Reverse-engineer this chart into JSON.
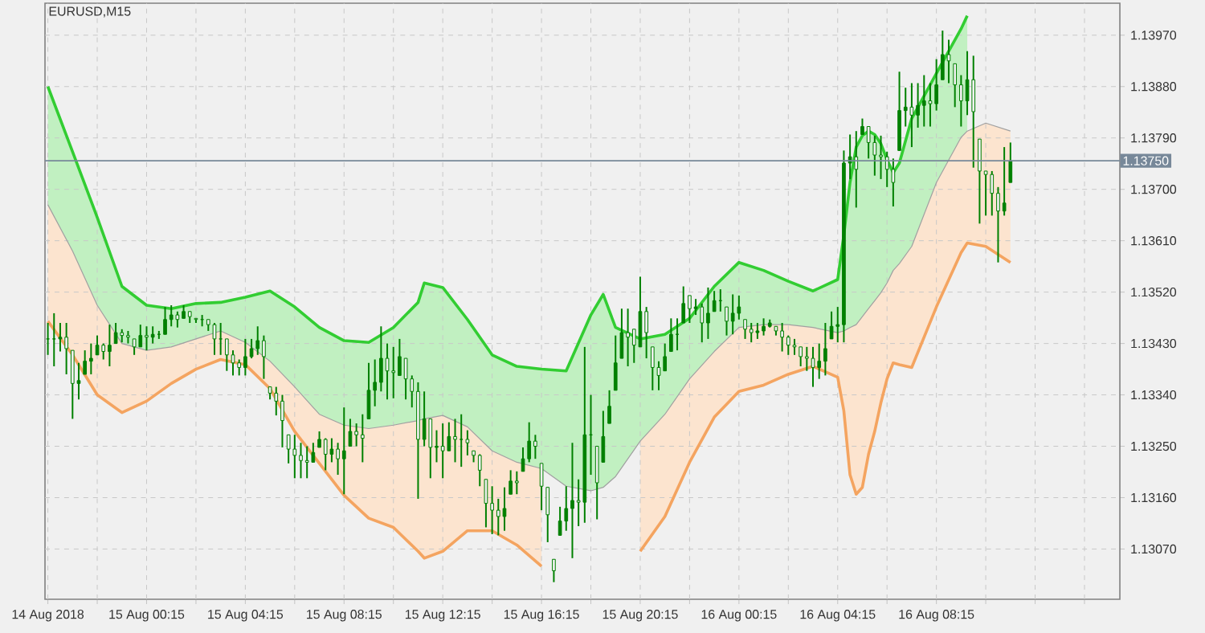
{
  "chart_data": {
    "type": "candlestick",
    "title": "EURUSD,M15",
    "color": "#008000",
    "x": [
      "2018-08-14T20:15",
      "2018-08-14T20:30",
      "2018-08-14T20:45",
      "2018-08-14T21:00",
      "2018-08-14T21:15",
      "2018-08-14T21:30",
      "2018-08-14T21:45",
      "2018-08-14T22:00",
      "2018-08-14T22:15",
      "2018-08-14T22:30",
      "2018-08-14T22:45",
      "2018-08-14T23:00",
      "2018-08-14T23:15",
      "2018-08-14T23:30",
      "2018-08-14T23:45",
      "2018-08-15T00:00",
      "2018-08-15T00:15",
      "2018-08-15T00:30",
      "2018-08-15T00:45",
      "2018-08-15T01:00",
      "2018-08-15T01:15",
      "2018-08-15T01:30",
      "2018-08-15T01:45",
      "2018-08-15T02:00",
      "2018-08-15T02:15",
      "2018-08-15T02:30",
      "2018-08-15T02:45",
      "2018-08-15T03:00",
      "2018-08-15T03:15",
      "2018-08-15T03:30",
      "2018-08-15T03:45",
      "2018-08-15T04:00",
      "2018-08-15T04:15",
      "2018-08-15T04:30",
      "2018-08-15T04:45",
      "2018-08-15T05:00",
      "2018-08-15T05:15",
      "2018-08-15T05:30",
      "2018-08-15T05:45",
      "2018-08-15T06:00",
      "2018-08-15T06:15",
      "2018-08-15T06:30",
      "2018-08-15T06:45",
      "2018-08-15T07:00",
      "2018-08-15T07:15",
      "2018-08-15T07:30",
      "2018-08-15T07:45",
      "2018-08-15T08:00",
      "2018-08-15T08:15",
      "2018-08-15T08:30",
      "2018-08-15T08:45",
      "2018-08-15T09:00",
      "2018-08-15T09:15",
      "2018-08-15T09:30",
      "2018-08-15T09:45",
      "2018-08-15T10:00",
      "2018-08-15T10:15",
      "2018-08-15T10:30",
      "2018-08-15T10:45",
      "2018-08-15T11:00",
      "2018-08-15T11:15",
      "2018-08-15T11:30",
      "2018-08-15T11:45",
      "2018-08-15T12:00",
      "2018-08-15T12:15",
      "2018-08-15T12:30",
      "2018-08-15T12:45",
      "2018-08-15T13:00",
      "2018-08-15T13:15",
      "2018-08-15T13:30",
      "2018-08-15T13:45",
      "2018-08-15T14:00",
      "2018-08-15T14:15",
      "2018-08-15T14:30",
      "2018-08-15T14:45",
      "2018-08-15T15:00",
      "2018-08-15T15:15",
      "2018-08-15T15:30",
      "2018-08-15T15:45",
      "2018-08-15T16:00",
      "2018-08-15T16:15",
      "2018-08-15T16:30",
      "2018-08-15T16:45",
      "2018-08-15T17:00",
      "2018-08-15T17:15",
      "2018-08-15T17:30",
      "2018-08-15T17:45",
      "2018-08-15T18:00",
      "2018-08-15T18:15",
      "2018-08-15T18:30",
      "2018-08-15T18:45",
      "2018-08-15T19:00",
      "2018-08-15T19:15",
      "2018-08-15T19:30",
      "2018-08-15T19:45",
      "2018-08-15T20:00",
      "2018-08-15T20:15",
      "2018-08-15T20:30",
      "2018-08-15T20:45",
      "2018-08-15T21:00",
      "2018-08-15T21:15",
      "2018-08-15T21:30",
      "2018-08-15T21:45",
      "2018-08-15T22:00",
      "2018-08-15T22:15",
      "2018-08-15T22:30",
      "2018-08-15T22:45",
      "2018-08-15T23:00",
      "2018-08-15T23:15",
      "2018-08-15T23:30",
      "2018-08-15T23:45",
      "2018-08-16T00:00",
      "2018-08-16T00:15",
      "2018-08-16T00:30",
      "2018-08-16T00:45",
      "2018-08-16T01:00",
      "2018-08-16T01:15",
      "2018-08-16T01:30",
      "2018-08-16T01:45",
      "2018-08-16T02:00",
      "2018-08-16T02:15",
      "2018-08-16T02:30",
      "2018-08-16T02:45",
      "2018-08-16T03:00",
      "2018-08-16T03:15",
      "2018-08-16T03:30",
      "2018-08-16T03:45",
      "2018-08-16T04:00",
      "2018-08-16T04:15",
      "2018-08-16T04:30",
      "2018-08-16T04:45",
      "2018-08-16T05:00",
      "2018-08-16T05:15",
      "2018-08-16T05:30",
      "2018-08-16T05:45",
      "2018-08-16T06:00",
      "2018-08-16T06:15",
      "2018-08-16T06:30",
      "2018-08-16T06:45",
      "2018-08-16T07:00",
      "2018-08-16T07:15",
      "2018-08-16T07:30",
      "2018-08-16T07:45",
      "2018-08-16T08:00",
      "2018-08-16T08:15",
      "2018-08-16T08:30",
      "2018-08-16T08:45",
      "2018-08-16T09:00",
      "2018-08-16T09:15",
      "2018-08-16T09:30",
      "2018-08-16T09:45",
      "2018-08-16T10:00",
      "2018-08-16T10:15",
      "2018-08-16T10:30",
      "2018-08-16T10:45",
      "2018-08-16T11:00",
      "2018-08-16T11:15"
    ],
    "ohlc": [
      [
        1.13438,
        1.13466,
        1.1341,
        1.13438
      ],
      [
        1.13438,
        1.13483,
        1.1339,
        1.13438
      ],
      [
        1.13438,
        1.13466,
        1.13416,
        1.13441
      ],
      [
        1.13441,
        1.13466,
        1.13376,
        1.13421
      ],
      [
        1.13418,
        1.13418,
        1.13298,
        1.1336
      ],
      [
        1.1336,
        1.13396,
        1.13332,
        1.13365
      ],
      [
        1.13376,
        1.13418,
        1.13376,
        1.13399
      ],
      [
        1.13399,
        1.1343,
        1.13376,
        1.13404
      ],
      [
        1.1341,
        1.13444,
        1.1341,
        1.13427
      ],
      [
        1.13427,
        1.1343,
        1.13402,
        1.13416
      ],
      [
        1.13416,
        1.13463,
        1.1339,
        1.13427
      ],
      [
        1.1343,
        1.13466,
        1.1343,
        1.13449
      ],
      [
        1.13449,
        1.13455,
        1.13432,
        1.13444
      ],
      [
        1.13444,
        1.13452,
        1.1343,
        1.13441
      ],
      [
        1.13438,
        1.13438,
        1.1341,
        1.13424
      ],
      [
        1.13424,
        1.13463,
        1.13424,
        1.13444
      ],
      [
        1.13444,
        1.1346,
        1.13418,
        1.13441
      ],
      [
        1.13441,
        1.1346,
        1.1343,
        1.13446
      ],
      [
        1.13446,
        1.13452,
        1.13438,
        1.13446
      ],
      [
        1.13446,
        1.13494,
        1.13446,
        1.13472
      ],
      [
        1.13472,
        1.13497,
        1.1346,
        1.1348
      ],
      [
        1.1348,
        1.13486,
        1.13458,
        1.13472
      ],
      [
        1.13474,
        1.13497,
        1.13474,
        1.13486
      ],
      [
        1.13486,
        1.13486,
        1.13466,
        1.13477
      ],
      [
        1.13474,
        1.13474,
        1.13466,
        1.13472
      ],
      [
        1.13472,
        1.1348,
        1.1346,
        1.13472
      ],
      [
        1.13472,
        1.13472,
        1.13452,
        1.13463
      ],
      [
        1.13463,
        1.13466,
        1.1341,
        1.13438
      ],
      [
        1.13438,
        1.13466,
        1.1341,
        1.13438
      ],
      [
        1.13438,
        1.13438,
        1.13382,
        1.1341
      ],
      [
        1.1341,
        1.13418,
        1.13374,
        1.13396
      ],
      [
        1.13396,
        1.13402,
        1.13374,
        1.13388
      ],
      [
        1.13388,
        1.13438,
        1.13374,
        1.13407
      ],
      [
        1.13407,
        1.13438,
        1.13404,
        1.13421
      ],
      [
        1.13421,
        1.1346,
        1.1341,
        1.13435
      ],
      [
        1.13435,
        1.13444,
        1.13368,
        1.13407
      ],
      [
        1.13354,
        1.13354,
        1.13332,
        1.13343
      ],
      [
        1.13343,
        1.13354,
        1.13304,
        1.13329
      ],
      [
        1.13329,
        1.1334,
        1.13248,
        1.13295
      ],
      [
        1.1327,
        1.1327,
        1.1322,
        1.13245
      ],
      [
        1.13245,
        1.1327,
        1.13194,
        1.13234
      ],
      [
        1.13234,
        1.13256,
        1.13194,
        1.13225
      ],
      [
        1.13225,
        1.1325,
        1.13194,
        1.13222
      ],
      [
        1.13222,
        1.13256,
        1.13222,
        1.13239
      ],
      [
        1.13248,
        1.13276,
        1.13248,
        1.13262
      ],
      [
        1.13262,
        1.13264,
        1.13208,
        1.13236
      ],
      [
        1.13236,
        1.13264,
        1.13222,
        1.13245
      ],
      [
        1.13245,
        1.13256,
        1.132,
        1.13228
      ],
      [
        1.13228,
        1.13318,
        1.13166,
        1.13242
      ],
      [
        1.1325,
        1.13298,
        1.1325,
        1.13276
      ],
      [
        1.13276,
        1.1329,
        1.1325,
        1.1327
      ],
      [
        1.1327,
        1.13306,
        1.13222,
        1.13264
      ],
      [
        1.13298,
        1.13396,
        1.13298,
        1.13348
      ],
      [
        1.13348,
        1.13402,
        1.1332,
        1.13362
      ],
      [
        1.13362,
        1.1346,
        1.13346,
        1.13404
      ],
      [
        1.13404,
        1.1343,
        1.13332,
        1.13382
      ],
      [
        1.13382,
        1.13424,
        1.13334,
        1.13379
      ],
      [
        1.13374,
        1.13438,
        1.13374,
        1.13407
      ],
      [
        1.13404,
        1.13404,
        1.13332,
        1.13368
      ],
      [
        1.13368,
        1.13374,
        1.13318,
        1.13346
      ],
      [
        1.13346,
        1.13362,
        1.13158,
        1.13262
      ],
      [
        1.13262,
        1.13346,
        1.1325,
        1.13298
      ],
      [
        1.13298,
        1.13298,
        1.13194,
        1.13248
      ],
      [
        1.13248,
        1.13278,
        1.13222,
        1.1325
      ],
      [
        1.1325,
        1.1329,
        1.13194,
        1.13242
      ],
      [
        1.13242,
        1.13292,
        1.13242,
        1.13267
      ],
      [
        1.13267,
        1.13298,
        1.13222,
        1.13262
      ],
      [
        1.13262,
        1.13306,
        1.13214,
        1.13262
      ],
      [
        1.13262,
        1.13278,
        1.13234,
        1.13256
      ],
      [
        1.13242,
        1.13242,
        1.13222,
        1.13234
      ],
      [
        1.13234,
        1.13236,
        1.1318,
        1.13208
      ],
      [
        1.13192,
        1.13192,
        1.13108,
        1.1315
      ],
      [
        1.1315,
        1.1318,
        1.13096,
        1.13138
      ],
      [
        1.13138,
        1.13158,
        1.13094,
        1.13127
      ],
      [
        1.13127,
        1.13178,
        1.13102,
        1.13141
      ],
      [
        1.13166,
        1.13208,
        1.13166,
        1.13189
      ],
      [
        1.13189,
        1.13206,
        1.13166,
        1.13186
      ],
      [
        1.13206,
        1.13248,
        1.13206,
        1.13228
      ],
      [
        1.13228,
        1.13292,
        1.13222,
        1.13259
      ],
      [
        1.13259,
        1.1327,
        1.13228,
        1.1325
      ],
      [
        1.1322,
        1.1322,
        1.13138,
        1.1318
      ],
      [
        1.13178,
        1.13178,
        1.13082,
        1.1313
      ],
      [
        1.13052,
        1.13052,
        1.13012,
        1.13032
      ],
      [
        1.13094,
        1.13144,
        1.13094,
        1.13119
      ],
      [
        1.13119,
        1.1318,
        1.13102,
        1.13141
      ],
      [
        1.13141,
        1.13256,
        1.13054,
        1.13155
      ],
      [
        1.13155,
        1.13192,
        1.1311,
        1.13152
      ],
      [
        1.13152,
        1.13424,
        1.13116,
        1.1327
      ],
      [
        1.1327,
        1.1334,
        1.132,
        1.1327
      ],
      [
        1.1325,
        1.1325,
        1.13122,
        1.13186
      ],
      [
        1.13222,
        1.13312,
        1.13222,
        1.13267
      ],
      [
        1.1329,
        1.13348,
        1.1329,
        1.1332
      ],
      [
        1.13348,
        1.13444,
        1.13348,
        1.13396
      ],
      [
        1.13404,
        1.13491,
        1.13404,
        1.13449
      ],
      [
        1.13449,
        1.13491,
        1.1339,
        1.13441
      ],
      [
        1.13455,
        1.13455,
        1.13396,
        1.13427
      ],
      [
        1.13424,
        1.13547,
        1.13424,
        1.13486
      ],
      [
        1.13486,
        1.13494,
        1.13404,
        1.13449
      ],
      [
        1.13424,
        1.13424,
        1.13348,
        1.13388
      ],
      [
        1.13388,
        1.13399,
        1.13348,
        1.13374
      ],
      [
        1.13382,
        1.1343,
        1.13382,
        1.13407
      ],
      [
        1.13416,
        1.13474,
        1.13416,
        1.13446
      ],
      [
        1.13446,
        1.13474,
        1.13418,
        1.13446
      ],
      [
        1.13466,
        1.1353,
        1.13466,
        1.135
      ],
      [
        1.13514,
        1.13514,
        1.13466,
        1.13491
      ],
      [
        1.13491,
        1.13508,
        1.1348,
        1.13494
      ],
      [
        1.13494,
        1.135,
        1.13432,
        1.13466
      ],
      [
        1.13466,
        1.13528,
        1.13438,
        1.13483
      ],
      [
        1.13486,
        1.13522,
        1.13486,
        1.13505
      ],
      [
        1.13505,
        1.13525,
        1.13486,
        1.13505
      ],
      [
        1.13494,
        1.13494,
        1.13444,
        1.13469
      ],
      [
        1.13469,
        1.13516,
        1.13446,
        1.13483
      ],
      [
        1.13483,
        1.13514,
        1.13472,
        1.13494
      ],
      [
        1.13472,
        1.13472,
        1.13438,
        1.13455
      ],
      [
        1.13455,
        1.13466,
        1.13432,
        1.13449
      ],
      [
        1.13449,
        1.13466,
        1.13438,
        1.13452
      ],
      [
        1.13452,
        1.13474,
        1.13444,
        1.1346
      ],
      [
        1.1346,
        1.13472,
        1.13458,
        1.13466
      ],
      [
        1.1346,
        1.1346,
        1.13444,
        1.13452
      ],
      [
        1.13452,
        1.13466,
        1.13416,
        1.13441
      ],
      [
        1.13441,
        1.13444,
        1.1341,
        1.13427
      ],
      [
        1.13427,
        1.13438,
        1.1341,
        1.13424
      ],
      [
        1.13424,
        1.13424,
        1.1339,
        1.13407
      ],
      [
        1.13407,
        1.13424,
        1.13382,
        1.13404
      ],
      [
        1.13404,
        1.13424,
        1.13354,
        1.13388
      ],
      [
        1.13388,
        1.1343,
        1.13368,
        1.13399
      ],
      [
        1.13399,
        1.13466,
        1.13374,
        1.13421
      ],
      [
        1.13438,
        1.13486,
        1.13438,
        1.1346
      ],
      [
        1.1346,
        1.13494,
        1.13432,
        1.13463
      ],
      [
        1.13463,
        1.13768,
        1.13432,
        1.13746
      ],
      [
        1.13746,
        1.13796,
        1.13718,
        1.13757
      ],
      [
        1.13757,
        1.13802,
        1.13668,
        1.13735
      ],
      [
        1.13796,
        1.13824,
        1.13796,
        1.1381
      ],
      [
        1.1381,
        1.1381,
        1.13754,
        1.13782
      ],
      [
        1.13782,
        1.13794,
        1.13724,
        1.1376
      ],
      [
        1.1376,
        1.13794,
        1.13718,
        1.13757
      ],
      [
        1.13757,
        1.13766,
        1.13704,
        1.13735
      ],
      [
        1.13735,
        1.13754,
        1.1367,
        1.13712
      ],
      [
        1.13768,
        1.13906,
        1.13768,
        1.13838
      ],
      [
        1.13838,
        1.13878,
        1.1381,
        1.13844
      ],
      [
        1.13844,
        1.13886,
        1.13774,
        1.1383
      ],
      [
        1.1383,
        1.13886,
        1.13808,
        1.13847
      ],
      [
        1.13847,
        1.139,
        1.1381,
        1.13855
      ],
      [
        1.13855,
        1.13886,
        1.1381,
        1.1385
      ],
      [
        1.1385,
        1.13928,
        1.13838,
        1.13883
      ],
      [
        1.13892,
        1.13978,
        1.13892,
        1.13936
      ],
      [
        1.13936,
        1.13962,
        1.13886,
        1.13925
      ],
      [
        1.1392,
        1.1392,
        1.13844,
        1.13883
      ],
      [
        1.13883,
        1.139,
        1.1381,
        1.13855
      ],
      [
        1.13855,
        1.13942,
        1.1383,
        1.13892
      ],
      [
        1.13892,
        1.13934,
        1.13738,
        1.13836
      ],
      [
        1.13788,
        1.13788,
        1.1364,
        1.13732
      ],
      [
        1.13732,
        1.13732,
        1.13654,
        1.13726
      ],
      [
        1.13726,
        1.13732,
        1.13654,
        1.13693
      ],
      [
        1.13693,
        1.13704,
        1.13572,
        1.13662
      ],
      [
        1.13662,
        1.13774,
        1.13654,
        1.13676
      ],
      [
        1.13712,
        1.13782,
        1.13712,
        1.1375
      ]
    ],
    "series": [
      {
        "type": "line",
        "color": "#32cd32",
        "upper": [
          1.1388,
          1.13766,
          1.13651,
          1.1353,
          1.13497,
          1.13491,
          1.135,
          1.13502,
          1.13511,
          1.13522,
          1.13494,
          1.13458,
          1.13435,
          1.13432,
          1.13458,
          1.13502,
          1.13536,
          1.13528,
          1.13472,
          1.1341,
          1.1339,
          1.13385,
          1.13382,
          1.1348,
          1.13516,
          1.13458,
          1.13438,
          1.13446,
          1.13474,
          1.1353,
          1.13572,
          1.13558,
          1.13539,
          1.13522,
          1.13542,
          1.1362,
          1.13712,
          1.13774,
          1.13794,
          1.13802,
          1.13796,
          1.1378,
          1.13752,
          1.13729,
          1.13746,
          1.13824,
          1.13903,
          1.13981,
          1.14004
        ],
        "x": [
          "2018-08-14T20:15",
          "2018-08-14T21:15",
          "2018-08-14T22:15",
          "2018-08-14T23:15",
          "2018-08-15T00:15",
          "2018-08-15T01:15",
          "2018-08-15T02:15",
          "2018-08-15T03:15",
          "2018-08-15T04:15",
          "2018-08-15T05:15",
          "2018-08-15T06:15",
          "2018-08-15T07:15",
          "2018-08-15T08:15",
          "2018-08-15T09:15",
          "2018-08-15T10:15",
          "2018-08-15T11:15",
          "2018-08-15T11:30",
          "2018-08-15T12:15",
          "2018-08-15T13:15",
          "2018-08-15T14:15",
          "2018-08-15T15:15",
          "2018-08-15T16:15",
          "2018-08-15T17:15",
          "2018-08-15T18:15",
          "2018-08-15T18:45",
          "2018-08-15T19:15",
          "2018-08-15T20:15",
          "2018-08-15T21:15",
          "2018-08-15T22:15",
          "2018-08-15T23:15",
          "2018-08-16T00:15",
          "2018-08-16T01:15",
          "2018-08-16T02:15",
          "2018-08-16T03:15",
          "2018-08-16T04:15",
          "2018-08-16T04:30",
          "2018-08-16T04:45",
          "2018-08-16T05:00",
          "2018-08-16T05:15",
          "2018-08-16T05:30",
          "2018-08-16T05:45",
          "2018-08-16T06:00",
          "2018-08-16T06:15",
          "2018-08-16T06:30",
          "2018-08-16T06:45",
          "2018-08-16T07:15",
          "2018-08-16T08:15",
          "2018-08-16T09:15",
          "2018-08-16T09:30"
        ],
        "values": [
          1.1388,
          1.13766,
          1.13651,
          1.1353,
          1.13497,
          1.13491,
          1.135,
          1.13502,
          1.13511,
          1.13522,
          1.13494,
          1.13458,
          1.13435,
          1.13432,
          1.13458,
          1.13502,
          1.13536,
          1.13528,
          1.13472,
          1.1341,
          1.1339,
          1.13385,
          1.13382,
          1.1348,
          1.13516,
          1.13458,
          1.13438,
          1.13446,
          1.13474,
          1.1353,
          1.13572,
          1.13558,
          1.13539,
          1.13522,
          1.13542,
          1.1362,
          1.13712,
          1.13774,
          1.13794,
          1.13802,
          1.13796,
          1.1378,
          1.13752,
          1.13729,
          1.13746,
          1.13824,
          1.13903,
          1.13981,
          1.14004
        ],
        "lower": [
          1.13673,
          1.13592,
          1.13497,
          1.1343,
          1.13418,
          1.13424,
          1.13438,
          1.13452,
          1.13432,
          1.13399,
          1.13354,
          1.13306,
          1.13287,
          1.13281,
          1.13287,
          1.13295,
          1.13298,
          1.13304,
          1.13284,
          1.13242,
          1.13222,
          1.13211,
          1.1318,
          1.13172,
          1.13178,
          1.13197,
          1.13259,
          1.13306,
          1.13368,
          1.13416,
          1.13458,
          1.13463,
          1.13463,
          1.13458,
          1.13449,
          1.13452,
          1.13458,
          1.13463,
          1.13477,
          1.13491,
          1.13505,
          1.13519,
          1.13536,
          1.13558,
          1.1357,
          1.136,
          1.13712,
          1.13791,
          1.13802
        ]
      },
      {
        "type": "line",
        "color": "#f4a460",
        "lower": [
          1.13469,
          1.1341,
          1.1334,
          1.13309,
          1.13329,
          1.1336,
          1.13385,
          1.13402,
          1.13393,
          1.13351,
          1.13276,
          1.1322,
          1.13164,
          1.13124,
          1.13108,
          1.13066,
          1.13054,
          1.13066,
          1.13102,
          1.13102,
          1.13077,
          1.1304,
          null,
          null,
          null,
          null,
          1.13066,
          1.13127,
          1.13222,
          1.13301,
          1.13346,
          1.13357,
          1.13376,
          1.1339,
          1.13371,
          1.13312,
          1.132,
          1.13166,
          1.13178,
          1.13236,
          1.13276,
          1.13326,
          1.13368,
          1.13396,
          1.13393,
          1.13388,
          1.13494,
          1.13589,
          1.13606,
          1.136,
          1.13572
        ],
        "x": [
          "2018-08-14T20:15",
          "2018-08-14T21:15",
          "2018-08-14T22:15",
          "2018-08-14T23:15",
          "2018-08-15T00:15",
          "2018-08-15T01:15",
          "2018-08-15T02:15",
          "2018-08-15T03:15",
          "2018-08-15T04:15",
          "2018-08-15T05:15",
          "2018-08-15T06:15",
          "2018-08-15T07:15",
          "2018-08-15T08:15",
          "2018-08-15T09:15",
          "2018-08-15T10:15",
          "2018-08-15T11:15",
          "2018-08-15T11:30",
          "2018-08-15T12:15",
          "2018-08-15T13:15",
          "2018-08-15T14:15",
          "2018-08-15T15:15",
          "2018-08-15T16:15",
          "2018-08-15T17:15",
          "2018-08-15T18:15",
          "2018-08-15T18:45",
          "2018-08-15T19:15",
          "2018-08-15T20:15",
          "2018-08-15T21:15",
          "2018-08-15T22:15",
          "2018-08-15T23:15",
          "2018-08-16T00:15",
          "2018-08-16T01:15",
          "2018-08-16T02:15",
          "2018-08-16T03:15",
          "2018-08-16T04:15",
          "2018-08-16T04:30",
          "2018-08-16T04:45",
          "2018-08-16T05:00",
          "2018-08-16T05:15",
          "2018-08-16T05:30",
          "2018-08-16T05:45",
          "2018-08-16T06:00",
          "2018-08-16T06:15",
          "2018-08-16T06:30",
          "2018-08-16T06:45",
          "2018-08-16T07:15",
          "2018-08-16T08:15",
          "2018-08-16T09:15",
          "2018-08-16T09:30",
          "2018-08-16T10:15",
          "2018-08-16T11:15"
        ],
        "values": [
          1.13469,
          1.1341,
          1.1334,
          1.13309,
          1.13329,
          1.1336,
          1.13385,
          1.13402,
          1.13393,
          1.13351,
          1.13276,
          1.1322,
          1.13164,
          1.13124,
          1.13108,
          1.13066,
          1.13054,
          1.13066,
          1.13102,
          1.13102,
          1.13077,
          1.1304,
          null,
          null,
          null,
          null,
          1.13066,
          1.13127,
          1.13222,
          1.13301,
          1.13346,
          1.13357,
          1.13376,
          1.1339,
          1.13371,
          1.13312,
          1.132,
          1.13166,
          1.13178,
          1.13236,
          1.13276,
          1.13326,
          1.13368,
          1.13396,
          1.13393,
          1.13388,
          1.13494,
          1.13589,
          1.13606,
          1.136,
          1.13572
        ],
        "upper": [
          1.13673,
          1.13592,
          1.13497,
          1.1343,
          1.13418,
          1.13424,
          1.13438,
          1.13452,
          1.13432,
          1.13399,
          1.13354,
          1.13306,
          1.13287,
          1.13281,
          1.13287,
          1.13295,
          1.13298,
          1.13304,
          1.13284,
          1.13242,
          1.13222,
          1.13211,
          null,
          null,
          null,
          null,
          1.13259,
          1.13306,
          1.13368,
          1.13416,
          1.13458,
          1.13463,
          1.13463,
          1.13458,
          1.13449,
          1.13452,
          1.13458,
          1.13463,
          1.13477,
          1.13491,
          1.13505,
          1.13519,
          1.13536,
          1.13558,
          1.1357,
          1.136,
          1.13712,
          1.13791,
          1.13802,
          1.13816,
          1.13802
        ]
      },
      {
        "type": "line",
        "color": "#a0a0a0",
        "x": [
          "2018-08-14T20:15",
          "2018-08-14T21:15",
          "2018-08-14T22:15",
          "2018-08-14T23:15",
          "2018-08-15T00:15",
          "2018-08-15T01:15",
          "2018-08-15T02:15",
          "2018-08-15T03:15",
          "2018-08-15T04:15",
          "2018-08-15T05:15",
          "2018-08-15T06:15",
          "2018-08-15T07:15",
          "2018-08-15T08:15",
          "2018-08-15T09:15",
          "2018-08-15T10:15",
          "2018-08-15T11:15",
          "2018-08-15T11:30",
          "2018-08-15T12:15",
          "2018-08-15T13:15",
          "2018-08-15T14:15",
          "2018-08-15T15:15",
          "2018-08-15T16:15",
          "2018-08-15T17:15",
          "2018-08-15T18:15",
          "2018-08-15T18:45",
          "2018-08-15T19:15",
          "2018-08-15T20:15",
          "2018-08-15T21:15",
          "2018-08-15T22:15",
          "2018-08-15T23:15",
          "2018-08-16T00:15",
          "2018-08-16T01:15",
          "2018-08-16T02:15",
          "2018-08-16T03:15",
          "2018-08-16T04:15",
          "2018-08-16T04:30",
          "2018-08-16T04:45",
          "2018-08-16T05:00",
          "2018-08-16T05:15",
          "2018-08-16T05:30",
          "2018-08-16T05:45",
          "2018-08-16T06:00",
          "2018-08-16T06:15",
          "2018-08-16T06:30",
          "2018-08-16T06:45",
          "2018-08-16T07:15",
          "2018-08-16T08:15",
          "2018-08-16T09:15",
          "2018-08-16T09:30",
          "2018-08-16T10:15",
          "2018-08-16T11:15"
        ],
        "values": [
          1.13673,
          1.13592,
          1.13497,
          1.1343,
          1.13418,
          1.13424,
          1.13438,
          1.13452,
          1.13432,
          1.13399,
          1.13354,
          1.13306,
          1.13287,
          1.13281,
          1.13287,
          1.13295,
          1.13298,
          1.13304,
          1.13284,
          1.13242,
          1.13222,
          1.13211,
          1.1318,
          1.13172,
          1.13178,
          1.13197,
          1.13259,
          1.13306,
          1.13368,
          1.13416,
          1.13458,
          1.13463,
          1.13463,
          1.13458,
          1.13449,
          1.13452,
          1.13458,
          1.13463,
          1.13477,
          1.13491,
          1.13505,
          1.13519,
          1.13536,
          1.13558,
          1.1357,
          1.136,
          1.13712,
          1.13791,
          1.13802,
          1.13816,
          1.13802
        ]
      }
    ],
    "xlim": [
      "2018-08-14T20:08",
      "2018-08-16T15:41"
    ],
    "ylim": [
      1.12982,
      1.14026
    ],
    "xticks": [
      {
        "value": "2018-08-14T20:15",
        "label": "14 Aug 2018"
      },
      {
        "value": "2018-08-14T22:15",
        "label": null
      },
      {
        "value": "2018-08-15T00:15",
        "label": "15 Aug 00:15"
      },
      {
        "value": "2018-08-15T02:15",
        "label": null
      },
      {
        "value": "2018-08-15T04:15",
        "label": "15 Aug 04:15"
      },
      {
        "value": "2018-08-15T06:15",
        "label": null
      },
      {
        "value": "2018-08-15T08:15",
        "label": "15 Aug 08:15"
      },
      {
        "value": "2018-08-15T10:15",
        "label": null
      },
      {
        "value": "2018-08-15T12:15",
        "label": "15 Aug 12:15"
      },
      {
        "value": "2018-08-15T14:15",
        "label": null
      },
      {
        "value": "2018-08-15T16:15",
        "label": "15 Aug 16:15"
      },
      {
        "value": "2018-08-15T18:15",
        "label": null
      },
      {
        "value": "2018-08-15T20:15",
        "label": "15 Aug 20:15"
      },
      {
        "value": "2018-08-15T22:15",
        "label": null
      },
      {
        "value": "2018-08-16T00:15",
        "label": "16 Aug 00:15"
      },
      {
        "value": "2018-08-16T02:15",
        "label": null
      },
      {
        "value": "2018-08-16T04:15",
        "label": "16 Aug 04:15"
      },
      {
        "value": "2018-08-16T06:15",
        "label": null
      },
      {
        "value": "2018-08-16T08:15",
        "label": "16 Aug 08:15"
      },
      {
        "value": "2018-08-16T10:15",
        "label": null
      },
      {
        "value": "2018-08-16T12:15",
        "label": null
      },
      {
        "value": "2018-08-16T14:15",
        "label": null
      }
    ],
    "yticks": [
      {
        "value": 1.1307,
        "label": "1.13070"
      },
      {
        "value": 1.1316,
        "label": "1.13160"
      },
      {
        "value": 1.1325,
        "label": "1.13250"
      },
      {
        "value": 1.1334,
        "label": "1.13340"
      },
      {
        "value": 1.1343,
        "label": "1.13430"
      },
      {
        "value": 1.1352,
        "label": "1.13520"
      },
      {
        "value": 1.1361,
        "label": "1.13610"
      },
      {
        "value": 1.137,
        "label": "1.13700"
      },
      {
        "value": 1.1379,
        "label": "1.13790"
      },
      {
        "value": 1.1388,
        "label": "1.13880"
      },
      {
        "value": 1.1397,
        "label": "1.13970"
      }
    ],
    "grid": true,
    "ref_lines": [
      {
        "axis": "y",
        "value": 1.1375,
        "label": "1.13750",
        "color": "#778899"
      }
    ]
  }
}
